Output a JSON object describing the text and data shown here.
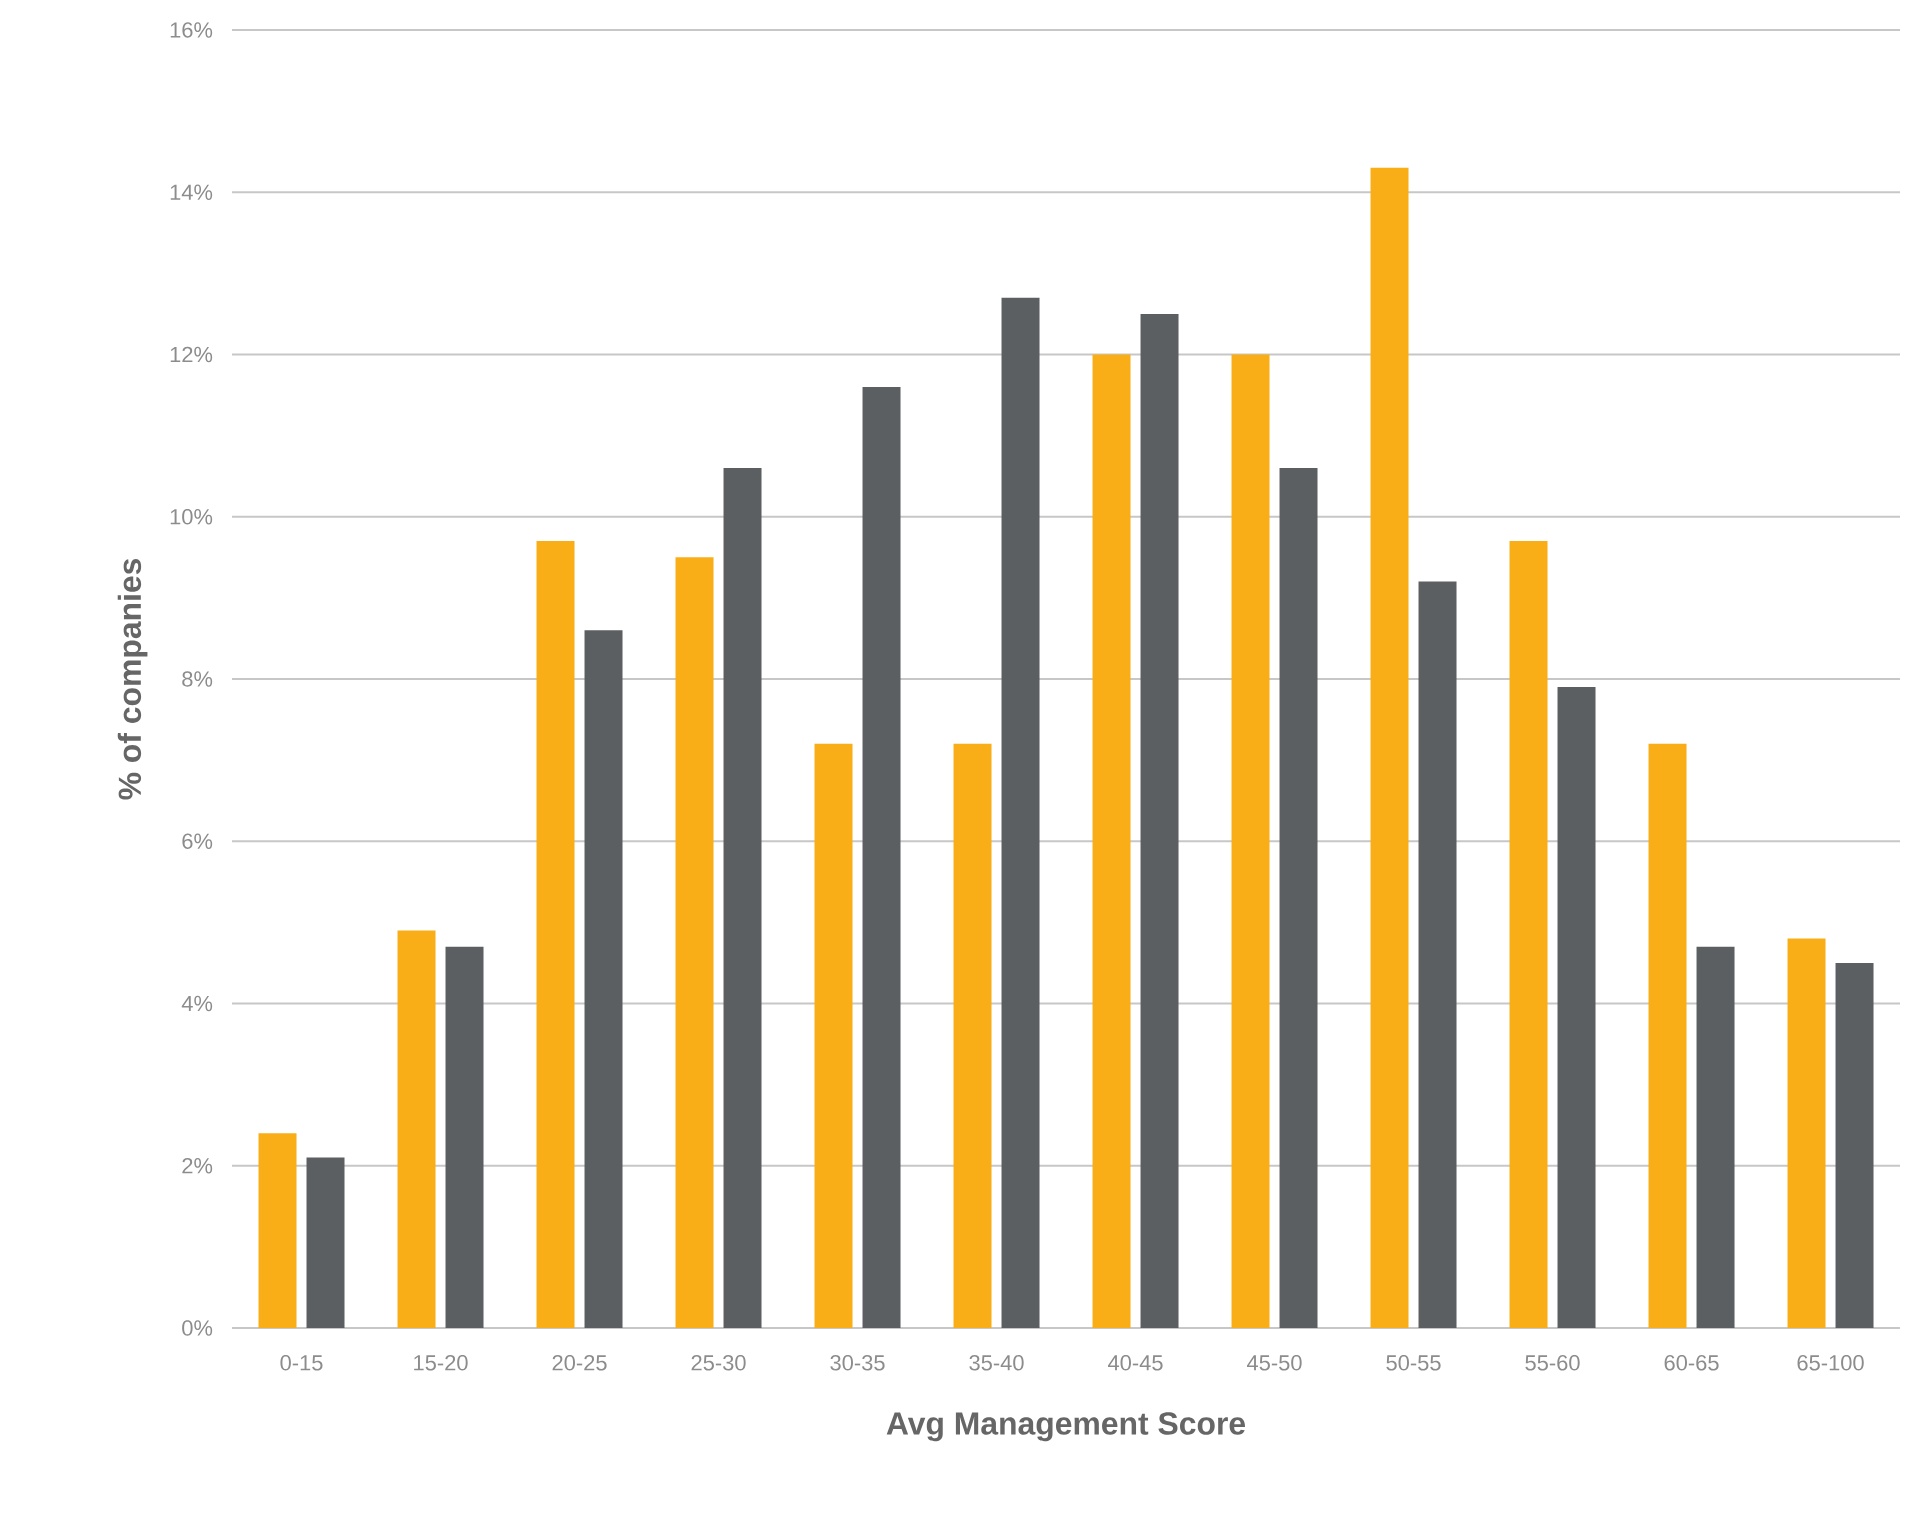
{
  "chart_data": {
    "type": "bar",
    "xlabel": "Avg Management Score",
    "ylabel": "% of companies",
    "categories": [
      "0-15",
      "15-20",
      "20-25",
      "25-30",
      "30-35",
      "35-40",
      "40-45",
      "45-50",
      "50-55",
      "55-60",
      "60-65",
      "65-100"
    ],
    "series": [
      {
        "color": "#f9ae17",
        "values": [
          2.4,
          4.9,
          9.7,
          9.5,
          7.2,
          7.2,
          12.0,
          12.0,
          14.3,
          9.7,
          7.2,
          4.8
        ]
      },
      {
        "color": "#5b5f61",
        "values": [
          2.1,
          4.7,
          8.6,
          10.6,
          11.6,
          12.7,
          12.5,
          10.6,
          9.2,
          7.9,
          4.7,
          4.5
        ]
      }
    ],
    "ylim": [
      0,
      16
    ],
    "yticks": [
      {
        "value": 0,
        "label": "0%"
      },
      {
        "value": 2,
        "label": "2%"
      },
      {
        "value": 4,
        "label": "4%"
      },
      {
        "value": 6,
        "label": "6%"
      },
      {
        "value": 8,
        "label": "8%"
      },
      {
        "value": 10,
        "label": "10%"
      },
      {
        "value": 12,
        "label": "12%"
      },
      {
        "value": 14,
        "label": "14%"
      },
      {
        "value": 16,
        "label": "16%"
      }
    ],
    "grid": "y"
  }
}
